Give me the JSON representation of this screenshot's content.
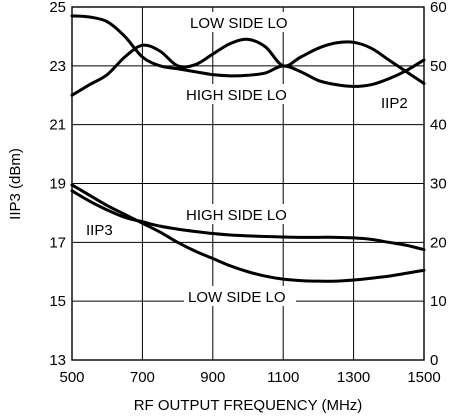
{
  "chart_data": {
    "type": "line",
    "xlabel": "RF OUTPUT FREQUENCY (MHz)",
    "ylabel": "IIP3 (dBm)",
    "xlim": [
      500,
      1500
    ],
    "ylim": [
      13,
      25
    ],
    "y2lim": [
      0,
      60
    ],
    "x_ticks": [
      "500",
      "700",
      "900",
      "1100",
      "1300",
      "1500"
    ],
    "y_ticks": [
      "13",
      "15",
      "17",
      "19",
      "21",
      "23",
      "25"
    ],
    "y2_ticks": [
      "0",
      "10",
      "20",
      "30",
      "40",
      "50",
      "60"
    ],
    "grid": true,
    "annotations": {
      "iip2_low": "LOW SIDE LO",
      "iip2_high": "HIGH SIDE LO",
      "iip2": "IIP2",
      "iip3_high": "HIGH SIDE LO",
      "iip3_low": "LOW SIDE LO",
      "iip3": "IIP3"
    },
    "series": [
      {
        "name": "IIP2 HIGH SIDE LO",
        "axis": "right",
        "x": [
          500,
          550,
          600,
          650,
          700,
          750,
          800,
          850,
          900,
          950,
          1000,
          1050,
          1100,
          1150,
          1200,
          1250,
          1300,
          1350,
          1400,
          1450,
          1500
        ],
        "values": [
          58.5,
          58.3,
          57.5,
          55.0,
          51.5,
          50.0,
          49.5,
          49.0,
          48.5,
          48.3,
          48.4,
          48.8,
          50.0,
          49.0,
          47.5,
          46.8,
          46.5,
          46.8,
          47.8,
          49.2,
          51.0
        ]
      },
      {
        "name": "IIP2 LOW SIDE LO",
        "axis": "right",
        "x": [
          500,
          550,
          600,
          650,
          700,
          750,
          800,
          850,
          900,
          950,
          1000,
          1050,
          1100,
          1150,
          1200,
          1250,
          1300,
          1350,
          1400,
          1450,
          1500
        ],
        "values": [
          45.0,
          46.8,
          48.5,
          51.5,
          53.5,
          52.5,
          50.0,
          50.2,
          52.0,
          53.8,
          54.5,
          53.2,
          50.0,
          51.5,
          53.0,
          53.9,
          54.0,
          53.0,
          51.0,
          49.0,
          47.0
        ]
      },
      {
        "name": "IIP3 HIGH SIDE LO",
        "axis": "left",
        "x": [
          500,
          550,
          600,
          650,
          700,
          750,
          800,
          850,
          900,
          950,
          1000,
          1050,
          1100,
          1150,
          1200,
          1250,
          1300,
          1350,
          1400,
          1450,
          1500
        ],
        "values": [
          18.75,
          18.4,
          18.1,
          17.85,
          17.7,
          17.55,
          17.45,
          17.37,
          17.3,
          17.25,
          17.22,
          17.2,
          17.18,
          17.17,
          17.17,
          17.17,
          17.15,
          17.1,
          17.0,
          16.9,
          16.75
        ]
      },
      {
        "name": "IIP3 LOW SIDE LO",
        "axis": "left",
        "x": [
          500,
          550,
          600,
          650,
          700,
          750,
          800,
          850,
          900,
          950,
          1000,
          1050,
          1100,
          1150,
          1200,
          1250,
          1300,
          1350,
          1400,
          1450,
          1500
        ],
        "values": [
          18.95,
          18.6,
          18.25,
          17.95,
          17.65,
          17.35,
          17.0,
          16.7,
          16.45,
          16.2,
          16.0,
          15.85,
          15.75,
          15.7,
          15.68,
          15.68,
          15.72,
          15.78,
          15.85,
          15.95,
          16.05
        ]
      }
    ]
  }
}
